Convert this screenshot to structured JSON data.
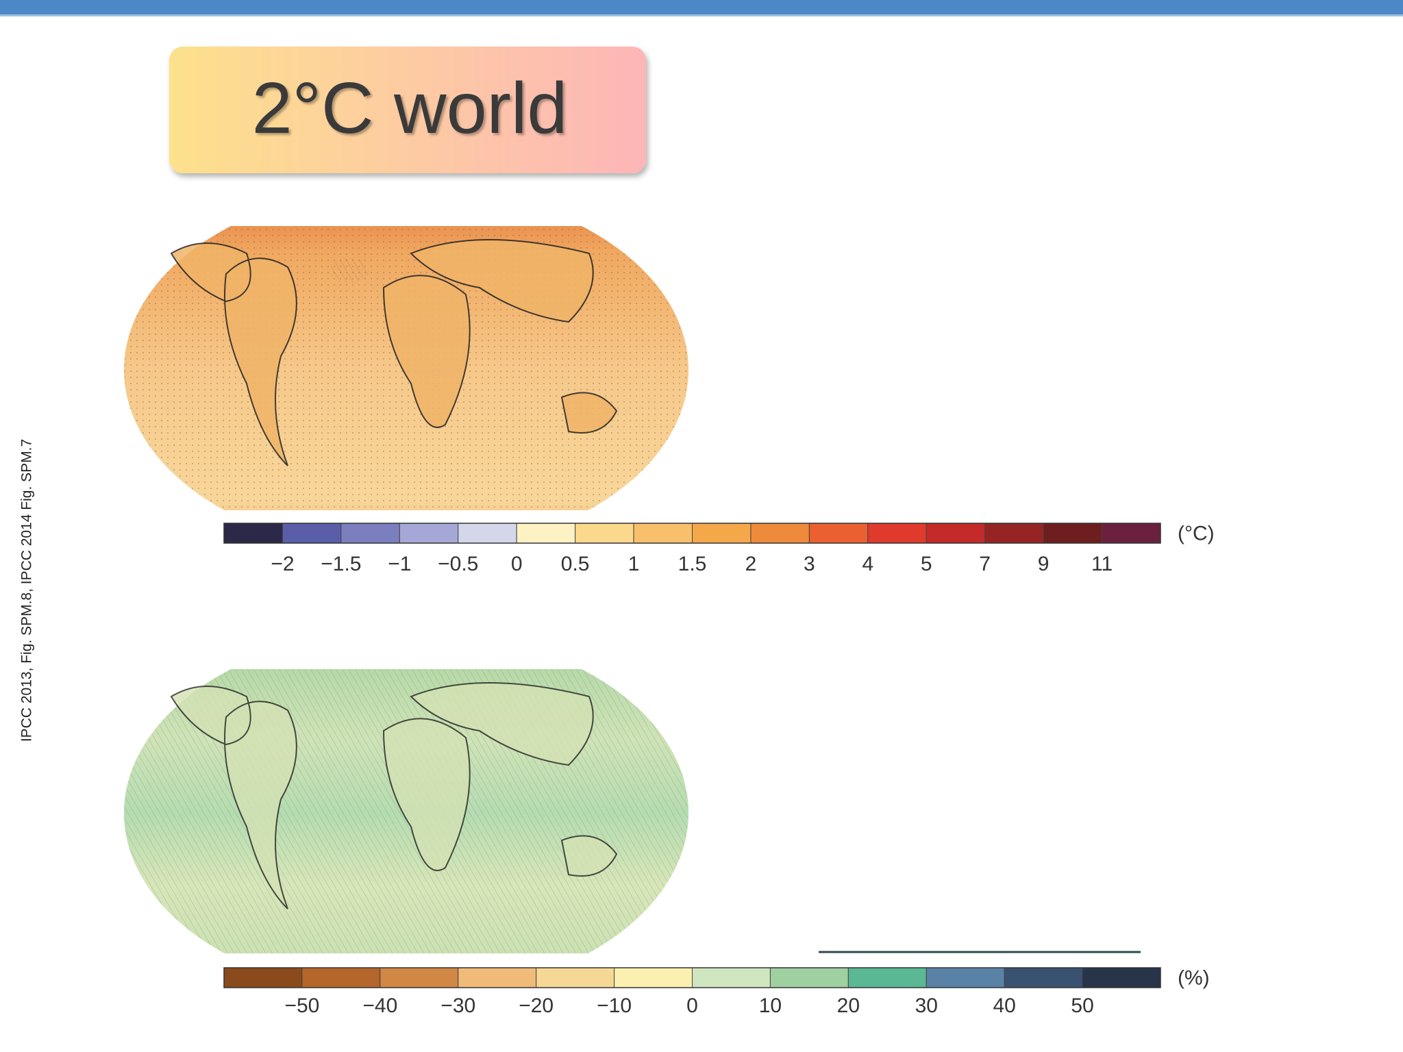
{
  "header": {
    "title": "2°C world"
  },
  "source": "IPCC 2013, Fig. SPM.8, IPCC 2014 Fig. SPM.7",
  "temperature_colorbar": {
    "unit": "(°C)",
    "ticks": [
      "−2",
      "−1.5",
      "−1",
      "−0.5",
      "0",
      "0.5",
      "1",
      "1.5",
      "2",
      "3",
      "4",
      "5",
      "7",
      "9",
      "11"
    ],
    "colors": [
      "#2b2848",
      "#5a5ea8",
      "#7b7fbf",
      "#a5a8d6",
      "#d4d6ea",
      "#fdf2c4",
      "#fbd98c",
      "#f8c06c",
      "#f4a84a",
      "#ef8a3a",
      "#ea6030",
      "#df3a2c",
      "#c42a2a",
      "#962424",
      "#6e1e1e",
      "#6b2040"
    ]
  },
  "precipitation_colorbar": {
    "unit": "(%)",
    "ticks": [
      "−50",
      "−40",
      "−30",
      "−20",
      "−10",
      "0",
      "10",
      "20",
      "30",
      "40",
      "50"
    ],
    "colors": [
      "#8b4a1c",
      "#b5662a",
      "#d08844",
      "#f0bb78",
      "#f6d894",
      "#fcf0b0",
      "#cfe6c0",
      "#9fd0a0",
      "#5ab894",
      "#5a82a6",
      "#3a5272",
      "#28344a"
    ]
  }
}
